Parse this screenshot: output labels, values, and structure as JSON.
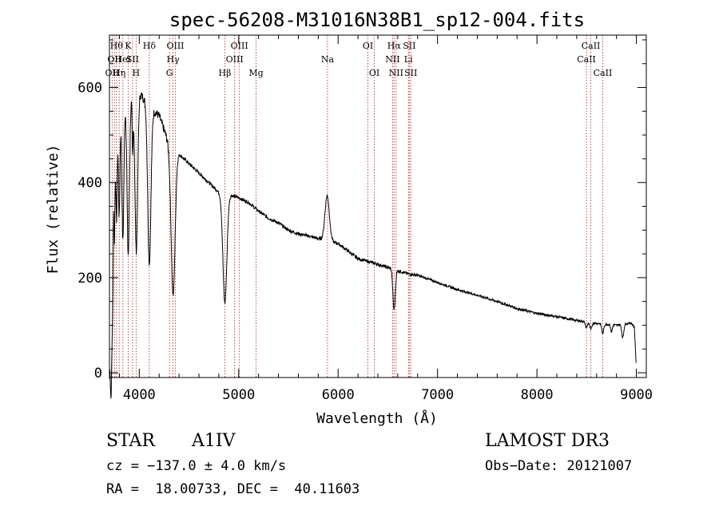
{
  "chart_data": {
    "type": "line",
    "title": "spec-56208-M31016N38B1_sp12-004.fits",
    "xlabel": "Wavelength (Å)",
    "ylabel": "Flux (relative)",
    "xlim": [
      3700,
      9100
    ],
    "ylim": [
      -10,
      710
    ],
    "x_ticks": [
      4000,
      5000,
      6000,
      7000,
      8000,
      9000
    ],
    "x_tick_labels": [
      "4000",
      "5000",
      "6000",
      "7000",
      "8000",
      "9000"
    ],
    "y_ticks": [
      0,
      200,
      400,
      600
    ],
    "y_tick_labels": [
      "0",
      "200",
      "400",
      "600"
    ],
    "grid": false,
    "series": [
      {
        "name": "Flux",
        "continuum": [
          [
            3700,
            5
          ],
          [
            3710,
            150
          ],
          [
            3720,
            400
          ],
          [
            3740,
            520
          ],
          [
            3800,
            560
          ],
          [
            3900,
            580
          ],
          [
            4000,
            590
          ],
          [
            4050,
            575
          ],
          [
            4100,
            560
          ],
          [
            4150,
            550
          ],
          [
            4200,
            540
          ],
          [
            4300,
            480
          ],
          [
            4400,
            460
          ],
          [
            4500,
            440
          ],
          [
            4600,
            420
          ],
          [
            4700,
            400
          ],
          [
            4800,
            380
          ],
          [
            4900,
            375
          ],
          [
            5000,
            368
          ],
          [
            5100,
            358
          ],
          [
            5200,
            340
          ],
          [
            5300,
            325
          ],
          [
            5400,
            315
          ],
          [
            5500,
            300
          ],
          [
            5600,
            292
          ],
          [
            5700,
            288
          ],
          [
            5800,
            282
          ],
          [
            6000,
            272
          ],
          [
            6200,
            240
          ],
          [
            6400,
            228
          ],
          [
            6600,
            215
          ],
          [
            6700,
            208
          ],
          [
            6800,
            205
          ],
          [
            7000,
            190
          ],
          [
            7200,
            175
          ],
          [
            7400,
            163
          ],
          [
            7600,
            150
          ],
          [
            7800,
            135
          ],
          [
            8000,
            125
          ],
          [
            8200,
            118
          ],
          [
            8400,
            110
          ],
          [
            8600,
            104
          ],
          [
            8800,
            100
          ],
          [
            8950,
            105
          ],
          [
            8980,
            95
          ],
          [
            9000,
            10
          ]
        ],
        "features": [
          {
            "center": 3720,
            "width": 8,
            "depth": -400
          },
          {
            "center": 3734,
            "width": 5,
            "depth": -250
          },
          {
            "center": 3750,
            "width": 6,
            "depth": -250
          },
          {
            "center": 3771,
            "width": 7,
            "depth": -220
          },
          {
            "center": 3798,
            "width": 8,
            "depth": -230
          },
          {
            "center": 3835,
            "width": 10,
            "depth": -290
          },
          {
            "center": 3889,
            "width": 12,
            "depth": -330
          },
          {
            "center": 3933,
            "width": 5,
            "depth": -120
          },
          {
            "center": 3970,
            "width": 14,
            "depth": -330
          },
          {
            "center": 4101,
            "width": 16,
            "depth": -330
          },
          {
            "center": 4340,
            "width": 20,
            "depth": -310
          },
          {
            "center": 4861,
            "width": 20,
            "depth": -230
          },
          {
            "center": 5890,
            "width": 22,
            "depth": 95
          },
          {
            "center": 6563,
            "width": 12,
            "depth": -85
          },
          {
            "center": 8498,
            "width": 10,
            "depth": -12
          },
          {
            "center": 8542,
            "width": 10,
            "depth": -15
          },
          {
            "center": 8662,
            "width": 10,
            "depth": -20
          },
          {
            "center": 8750,
            "width": 8,
            "depth": -15
          },
          {
            "center": 8863,
            "width": 10,
            "depth": -28
          }
        ]
      }
    ],
    "lines": [
      {
        "wave": 3727,
        "label": "OII",
        "row": 2
      },
      {
        "wave": 3750,
        "label": "OII",
        "row": 1
      },
      {
        "wave": 3771,
        "label": "Hθ",
        "row": 0
      },
      {
        "wave": 3798,
        "label": "Hη",
        "row": 2
      },
      {
        "wave": 3835,
        "label": "HeI",
        "row": 1
      },
      {
        "wave": 3889,
        "label": "K",
        "row": 0
      },
      {
        "wave": 3933,
        "label": "SII",
        "row": 1
      },
      {
        "wave": 3968,
        "label": "H",
        "row": 2
      },
      {
        "wave": 4101,
        "label": "Hδ",
        "row": 0
      },
      {
        "wave": 4304,
        "label": "G",
        "row": 2
      },
      {
        "wave": 4340,
        "label": "Hγ",
        "row": 1
      },
      {
        "wave": 4363,
        "label": "OIII",
        "row": 0
      },
      {
        "wave": 4861,
        "label": "Hβ",
        "row": 2
      },
      {
        "wave": 4959,
        "label": "OIII",
        "row": 1
      },
      {
        "wave": 5007,
        "label": "OIII",
        "row": 0
      },
      {
        "wave": 5175,
        "label": "Mg",
        "row": 2
      },
      {
        "wave": 5893,
        "label": "Na",
        "row": 1
      },
      {
        "wave": 6300,
        "label": "OI",
        "row": 0
      },
      {
        "wave": 6364,
        "label": "OI",
        "row": 2
      },
      {
        "wave": 6548,
        "label": "NII",
        "row": 1
      },
      {
        "wave": 6563,
        "label": "Hα",
        "row": 0
      },
      {
        "wave": 6583,
        "label": "NII",
        "row": 2
      },
      {
        "wave": 6707,
        "label": "Li",
        "row": 1
      },
      {
        "wave": 6716,
        "label": "SII",
        "row": 0
      },
      {
        "wave": 6731,
        "label": "SII",
        "row": 2
      },
      {
        "wave": 8498,
        "label": "CaII",
        "row": 1
      },
      {
        "wave": 8542,
        "label": "CaII",
        "row": 0
      },
      {
        "wave": 8662,
        "label": "CaII",
        "row": 2
      }
    ],
    "colors": {
      "spectrum": "#000000",
      "lines": "#b02020",
      "axis": "#000000"
    }
  },
  "info": {
    "object_class": "STAR",
    "subclass": "A1IV",
    "survey": "LAMOST DR3",
    "redshift": "cz = −137.0 ± 4.0 km/s",
    "obs_date": "Obs−Date: 20121007",
    "coords": "RA =  18.00733, DEC =  40.11603"
  }
}
